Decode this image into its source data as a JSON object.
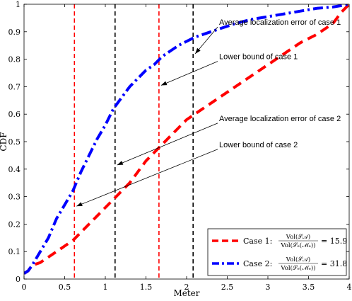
{
  "chart_data": {
    "type": "line",
    "title": "",
    "xlabel": "Meter",
    "ylabel": "CDF",
    "xlim": [
      0,
      4
    ],
    "ylim": [
      0,
      1
    ],
    "xticks": [
      "0",
      "0.5",
      "1",
      "1.5",
      "2",
      "2.5",
      "3",
      "3.5",
      "4"
    ],
    "yticks": [
      "0",
      "0.1",
      "0.2",
      "0.3",
      "0.4",
      "0.5",
      "0.6",
      "0.7",
      "0.8",
      "0.9",
      "1"
    ],
    "grid": false,
    "legend_position": "bottom-right",
    "series": [
      {
        "name": "Case 1",
        "color": "#ff0000",
        "style": "dashed",
        "x": [
          0.0,
          0.05,
          0.1,
          0.15,
          0.2,
          0.3,
          0.4,
          0.5,
          0.6,
          0.7,
          0.8,
          0.9,
          1.0,
          1.1,
          1.2,
          1.3,
          1.4,
          1.5,
          1.6,
          1.7,
          1.8,
          1.9,
          2.0,
          2.1,
          2.2,
          2.4,
          2.6,
          2.8,
          3.0,
          3.2,
          3.4,
          3.6,
          3.8,
          3.85,
          3.9,
          3.95,
          4.0
        ],
        "y": [
          0.02,
          0.03,
          0.05,
          0.055,
          0.06,
          0.08,
          0.1,
          0.12,
          0.14,
          0.17,
          0.2,
          0.23,
          0.26,
          0.29,
          0.32,
          0.35,
          0.39,
          0.43,
          0.46,
          0.49,
          0.52,
          0.55,
          0.58,
          0.6,
          0.62,
          0.66,
          0.7,
          0.74,
          0.78,
          0.82,
          0.86,
          0.89,
          0.93,
          0.95,
          0.97,
          0.985,
          1.0
        ]
      },
      {
        "name": "Case 2",
        "color": "#0000ff",
        "style": "dash-dot",
        "x": [
          0.0,
          0.05,
          0.1,
          0.2,
          0.3,
          0.4,
          0.5,
          0.6,
          0.7,
          0.8,
          0.9,
          1.0,
          1.1,
          1.2,
          1.3,
          1.4,
          1.5,
          1.6,
          1.7,
          1.8,
          1.9,
          2.0,
          2.1,
          2.2,
          2.4,
          2.6,
          2.8,
          3.0,
          3.2,
          3.4,
          3.6,
          3.8,
          4.0
        ],
        "y": [
          0.02,
          0.03,
          0.05,
          0.1,
          0.15,
          0.22,
          0.27,
          0.32,
          0.39,
          0.45,
          0.51,
          0.56,
          0.62,
          0.66,
          0.7,
          0.73,
          0.76,
          0.78,
          0.81,
          0.83,
          0.85,
          0.865,
          0.88,
          0.89,
          0.91,
          0.93,
          0.945,
          0.955,
          0.965,
          0.975,
          0.985,
          0.99,
          1.0
        ]
      }
    ],
    "vlines": [
      {
        "x": 0.62,
        "color": "#ff0000"
      },
      {
        "x": 1.12,
        "color": "#000000"
      },
      {
        "x": 1.66,
        "color": "#ff0000"
      },
      {
        "x": 2.08,
        "color": "#000000"
      }
    ],
    "annotations": [
      {
        "text": "Average localization error of case 1",
        "text_x": 2.4,
        "text_y": 0.925,
        "arrow_x": 2.08,
        "arrow_y": 0.82
      },
      {
        "text": "Lower bound of case 1",
        "text_x": 2.4,
        "text_y": 0.8,
        "arrow_x": 1.66,
        "arrow_y": 0.705
      },
      {
        "text": "Average localization error of case 2",
        "text_x": 2.4,
        "text_y": 0.575,
        "arrow_x": 1.12,
        "arrow_y": 0.415
      },
      {
        "text": "Lower bound of case 2",
        "text_x": 2.4,
        "text_y": 0.48,
        "arrow_x": 0.62,
        "arrow_y": 0.265
      }
    ],
    "legend": [
      {
        "label": "Case 1:",
        "numerator": "Vol(𝒮𝒜)",
        "denominator": "Vol(𝒮ₑ(ℳₑ))",
        "value": "= 15.9"
      },
      {
        "label": "Case 2:",
        "numerator": "Vol(𝒮𝒜)",
        "denominator": "Vol(𝒮ₑ(ℳₑ))",
        "value": "= 31.8"
      }
    ]
  }
}
